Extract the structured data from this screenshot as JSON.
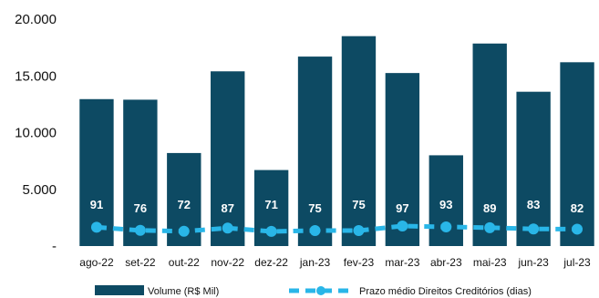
{
  "chart_data": {
    "type": "bar",
    "categories": [
      "ago-22",
      "set-22",
      "out-22",
      "nov-22",
      "dez-22",
      "jan-23",
      "fev-23",
      "mar-23",
      "abr-23",
      "mai-23",
      "jun-23",
      "jul-23"
    ],
    "series": [
      {
        "name": "Volume (R$ Mil)",
        "type": "bar",
        "axis": "left",
        "color": "#0d4a63",
        "values": [
          12950,
          12900,
          8200,
          15400,
          6700,
          16700,
          18500,
          15250,
          8000,
          17850,
          13600,
          16200
        ]
      },
      {
        "name": "Prazo médio Direitos Creditórios (dias)",
        "type": "line",
        "axis": "right",
        "style": "dashed",
        "color": "#29b6e8",
        "values": [
          91,
          76,
          72,
          87,
          71,
          75,
          75,
          97,
          93,
          89,
          83,
          82
        ]
      }
    ],
    "yticks": [
      "-",
      "5.000",
      "10.000",
      "15.000",
      "20.000"
    ],
    "ylim": [
      0,
      20000
    ],
    "grid": false,
    "legend_position": "bottom"
  }
}
